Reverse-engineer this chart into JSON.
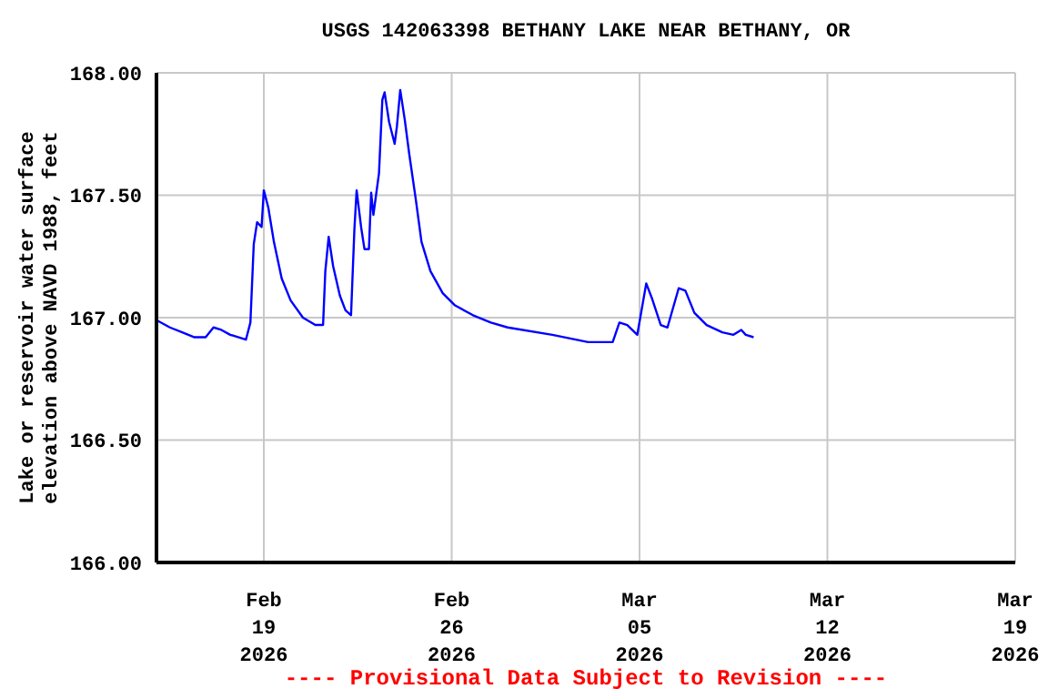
{
  "chart_data": {
    "type": "line",
    "title": "USGS 142063398 BETHANY LAKE NEAR BETHANY, OR",
    "ylabel": "Lake or reservoir water surface\nelevation above NAVD 1988, feet",
    "annotations": [
      "---- Provisional Data Subject to Revision ----"
    ],
    "x": [
      "2026-02-15T00:00",
      "2026-02-15T12:00",
      "2026-02-15T23:00",
      "2026-02-16T10:00",
      "2026-02-16T20:00",
      "2026-02-17T03:00",
      "2026-02-17T10:00",
      "2026-02-17T18:00",
      "2026-02-18T08:00",
      "2026-02-18T12:00",
      "2026-02-18T15:00",
      "2026-02-18T18:00",
      "2026-02-18T22:00",
      "2026-02-19T00:00",
      "2026-02-19T04:00",
      "2026-02-19T09:00",
      "2026-02-19T16:00",
      "2026-02-20T00:00",
      "2026-02-20T11:00",
      "2026-02-20T22:00",
      "2026-02-21T05:00",
      "2026-02-21T07:00",
      "2026-02-21T10:00",
      "2026-02-21T14:00",
      "2026-02-21T20:00",
      "2026-02-22T01:00",
      "2026-02-22T06:00",
      "2026-02-22T09:00",
      "2026-02-22T11:00",
      "2026-02-22T15:00",
      "2026-02-22T18:00",
      "2026-02-22T22:00",
      "2026-02-23T00:00",
      "2026-02-23T02:00",
      "2026-02-23T07:00",
      "2026-02-23T10:00",
      "2026-02-23T12:00",
      "2026-02-23T16:00",
      "2026-02-23T21:00",
      "2026-02-23T23:00",
      "2026-02-24T02:00",
      "2026-02-24T06:00",
      "2026-02-24T10:00",
      "2026-02-24T16:00",
      "2026-02-24T21:00",
      "2026-02-25T05:00",
      "2026-02-25T16:00",
      "2026-02-26T03:00",
      "2026-02-26T19:00",
      "2026-02-27T11:00",
      "2026-02-28T02:00",
      "2026-03-01T18:00",
      "2026-03-03T02:00",
      "2026-03-04T00:00",
      "2026-03-04T06:00",
      "2026-03-04T13:00",
      "2026-03-04T22:00",
      "2026-03-05T06:00",
      "2026-03-05T11:00",
      "2026-03-05T19:00",
      "2026-03-06T01:00",
      "2026-03-06T11:00",
      "2026-03-06T17:00",
      "2026-03-07T01:00",
      "2026-03-07T12:00",
      "2026-03-08T02:00",
      "2026-03-08T12:00",
      "2026-03-08T19:00",
      "2026-03-08T23:00",
      "2026-03-09T06:00"
    ],
    "series": [
      {
        "color": "#0000ff",
        "values": [
          166.99,
          166.96,
          166.94,
          166.92,
          166.92,
          166.96,
          166.95,
          166.93,
          166.91,
          166.98,
          167.3,
          167.39,
          167.37,
          167.52,
          167.45,
          167.31,
          167.16,
          167.07,
          167.0,
          166.97,
          166.97,
          167.19,
          167.33,
          167.21,
          167.09,
          167.03,
          167.01,
          167.36,
          167.52,
          167.37,
          167.28,
          167.28,
          167.51,
          167.42,
          167.59,
          167.89,
          167.92,
          167.8,
          167.71,
          167.78,
          167.93,
          167.81,
          167.67,
          167.48,
          167.31,
          167.19,
          167.1,
          167.05,
          167.01,
          166.98,
          166.96,
          166.93,
          166.9,
          166.9,
          166.98,
          166.97,
          166.93,
          167.14,
          167.08,
          166.97,
          166.96,
          167.12,
          167.11,
          167.02,
          166.97,
          166.94,
          166.93,
          166.95,
          166.93,
          166.92
        ]
      }
    ],
    "xlim": [
      "2026-02-15",
      "2026-03-19"
    ],
    "xticks": [
      {
        "value": "2026-02-19",
        "label": "Feb\n19\n2026"
      },
      {
        "value": "2026-02-26",
        "label": "Feb\n26\n2026"
      },
      {
        "value": "2026-03-05",
        "label": "Mar\n05\n2026"
      },
      {
        "value": "2026-03-12",
        "label": "Mar\n12\n2026"
      },
      {
        "value": "2026-03-19",
        "label": "Mar\n19\n2026"
      }
    ],
    "ylim": [
      166,
      168
    ],
    "yticks": [
      {
        "value": 166,
        "label": "166.00"
      },
      {
        "value": 166.5,
        "label": "166.50"
      },
      {
        "value": 167,
        "label": "167.00"
      },
      {
        "value": 167.5,
        "label": "167.50"
      },
      {
        "value": 168,
        "label": "168.00"
      }
    ],
    "grid": true,
    "marker": "none",
    "line_style": "solid"
  }
}
